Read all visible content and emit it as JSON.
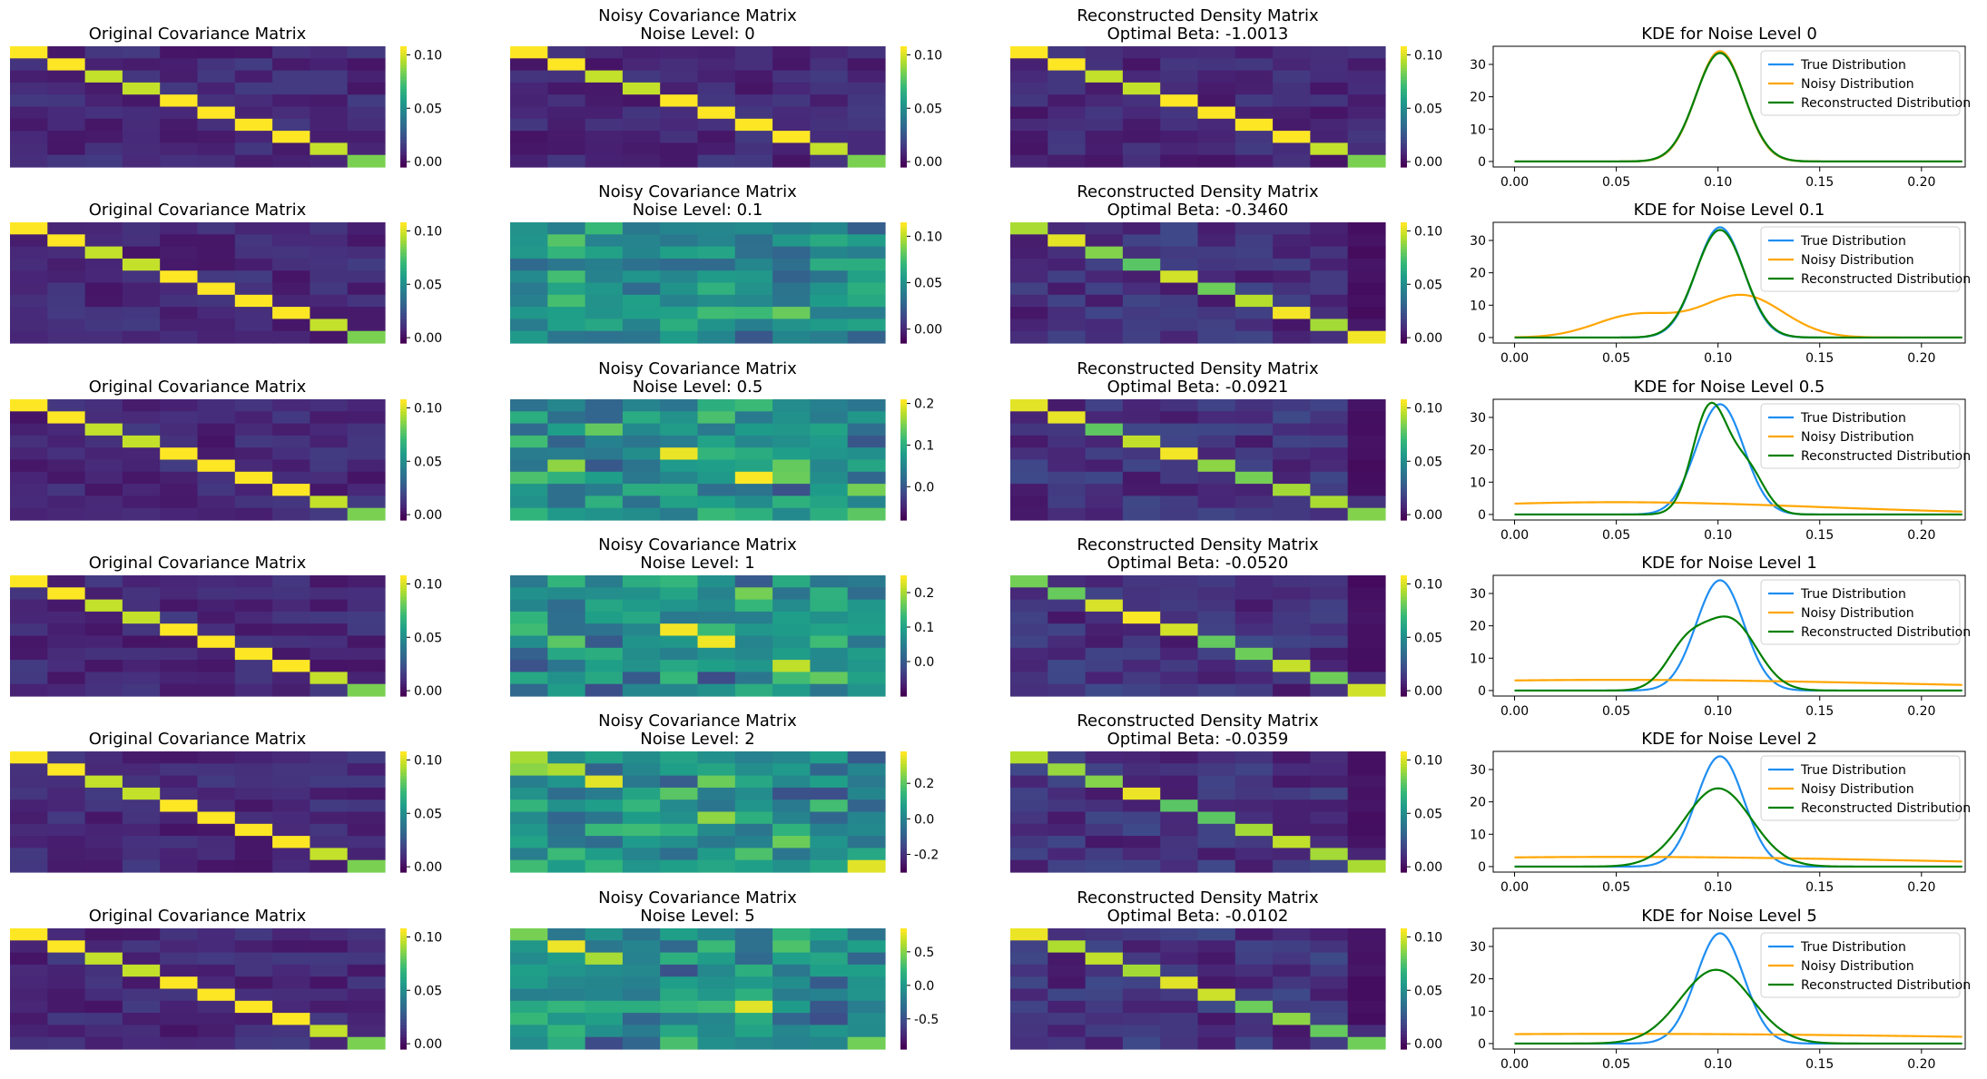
{
  "figure": {
    "background": "#ffffff",
    "colormap": "viridis"
  },
  "chart_data": {
    "type": "heatmap",
    "matrix_size": 10,
    "rows": [
      {
        "original": {
          "title": "Original Covariance Matrix",
          "colorbar_ticks": [
            "0.00",
            "0.05",
            "0.10"
          ],
          "range": [
            -0.005,
            0.108
          ]
        },
        "noisy": {
          "title_line1": "Noisy Covariance Matrix",
          "title_line2": "Noise Level: 0",
          "colorbar_ticks": [
            "0.00",
            "0.05",
            "0.10"
          ],
          "range": [
            -0.005,
            0.108
          ]
        },
        "reconstructed": {
          "title_line1": "Reconstructed Density Matrix",
          "title_line2": "Optimal Beta: -1.0013",
          "colorbar_ticks": [
            "0.00",
            "0.05",
            "0.10"
          ],
          "range": [
            -0.005,
            0.108
          ]
        },
        "kde": {
          "title": "KDE for Noise Level 0",
          "true": {
            "mean": 0.101,
            "sd": 0.0117
          },
          "noisy": {
            "mean": 0.101,
            "sd": 0.0117
          },
          "recon": {
            "mean": 0.101,
            "sd": 0.0119
          }
        }
      },
      {
        "original": {
          "title": "Original Covariance Matrix",
          "colorbar_ticks": [
            "0.00",
            "0.05",
            "0.10"
          ],
          "range": [
            -0.005,
            0.108
          ]
        },
        "noisy": {
          "title_line1": "Noisy Covariance Matrix",
          "title_line2": "Noise Level: 0.1",
          "colorbar_ticks": [
            "0.00",
            "0.05",
            "0.10"
          ],
          "range": [
            -0.015,
            0.115
          ]
        },
        "reconstructed": {
          "title_line1": "Reconstructed Density Matrix",
          "title_line2": "Optimal Beta: -0.3460",
          "colorbar_ticks": [
            "0.00",
            "0.05",
            "0.10"
          ],
          "range": [
            -0.005,
            0.108
          ]
        },
        "kde": {
          "title": "KDE for Noise Level 0.1",
          "true": {
            "mean": 0.101,
            "sd": 0.0117
          },
          "noisy": [
            {
              "mean": 0.06,
              "sd": 0.02,
              "w": 0.35
            },
            {
              "mean": 0.112,
              "sd": 0.02,
              "w": 0.65
            }
          ],
          "recon": {
            "mean": 0.101,
            "sd": 0.012
          }
        }
      },
      {
        "original": {
          "title": "Original Covariance Matrix",
          "colorbar_ticks": [
            "0.00",
            "0.05",
            "0.10"
          ],
          "range": [
            -0.005,
            0.108
          ]
        },
        "noisy": {
          "title_line1": "Noisy Covariance Matrix",
          "title_line2": "Noise Level: 0.5",
          "colorbar_ticks": [
            "0.0",
            "0.1",
            "0.2"
          ],
          "range": [
            -0.08,
            0.21
          ]
        },
        "reconstructed": {
          "title_line1": "Reconstructed Density Matrix",
          "title_line2": "Optimal Beta: -0.0921",
          "colorbar_ticks": [
            "0.00",
            "0.05",
            "0.10"
          ],
          "range": [
            -0.005,
            0.108
          ]
        },
        "kde": {
          "title": "KDE for Noise Level 0.5",
          "true": {
            "mean": 0.101,
            "sd": 0.0117
          },
          "noisy": {
            "mean": 0.05,
            "sd": 0.1,
            "peak": 3.8
          },
          "recon": [
            {
              "mean": 0.096,
              "sd": 0.0085,
              "w": 0.7
            },
            {
              "mean": 0.114,
              "sd": 0.0085,
              "w": 0.3
            }
          ]
        }
      },
      {
        "original": {
          "title": "Original Covariance Matrix",
          "colorbar_ticks": [
            "0.00",
            "0.05",
            "0.10"
          ],
          "range": [
            -0.005,
            0.108
          ]
        },
        "noisy": {
          "title_line1": "Noisy Covariance Matrix",
          "title_line2": "Noise Level: 1",
          "colorbar_ticks": [
            "0.0",
            "0.1",
            "0.2"
          ],
          "range": [
            -0.1,
            0.25
          ]
        },
        "reconstructed": {
          "title_line1": "Reconstructed Density Matrix",
          "title_line2": "Optimal Beta: -0.0520",
          "colorbar_ticks": [
            "0.00",
            "0.05",
            "0.10"
          ],
          "range": [
            -0.005,
            0.108
          ]
        },
        "kde": {
          "title": "KDE for Noise Level 1",
          "true": {
            "mean": 0.101,
            "sd": 0.0117
          },
          "noisy": {
            "mean": 0.05,
            "sd": 0.15,
            "peak": 3.3
          },
          "recon": [
            {
              "mean": 0.084,
              "sd": 0.01,
              "w": 0.3
            },
            {
              "mean": 0.106,
              "sd": 0.013,
              "w": 0.7
            }
          ]
        }
      },
      {
        "original": {
          "title": "Original Covariance Matrix",
          "colorbar_ticks": [
            "0.00",
            "0.05",
            "0.10"
          ],
          "range": [
            -0.005,
            0.108
          ]
        },
        "noisy": {
          "title_line1": "Noisy Covariance Matrix",
          "title_line2": "Noise Level: 2",
          "colorbar_ticks": [
            "-0.2",
            "0.0",
            "0.2"
          ],
          "range": [
            -0.3,
            0.38
          ]
        },
        "reconstructed": {
          "title_line1": "Reconstructed Density Matrix",
          "title_line2": "Optimal Beta: -0.0359",
          "colorbar_ticks": [
            "0.00",
            "0.05",
            "0.10"
          ],
          "range": [
            -0.005,
            0.108
          ]
        },
        "kde": {
          "title": "KDE for Noise Level 2",
          "true": {
            "mean": 0.101,
            "sd": 0.0117
          },
          "noisy": {
            "mean": 0.05,
            "sd": 0.15,
            "peak": 3.0
          },
          "recon": {
            "mean": 0.1,
            "sd": 0.0165
          }
        }
      },
      {
        "original": {
          "title": "Original Covariance Matrix",
          "colorbar_ticks": [
            "0.00",
            "0.05",
            "0.10"
          ],
          "range": [
            -0.005,
            0.108
          ]
        },
        "noisy": {
          "title_line1": "Noisy Covariance Matrix",
          "title_line2": "Noise Level: 5",
          "colorbar_ticks": [
            "-0.5",
            "0.0",
            "0.5"
          ],
          "range": [
            -0.95,
            0.85
          ]
        },
        "reconstructed": {
          "title_line1": "Reconstructed Density Matrix",
          "title_line2": "Optimal Beta: -0.0102",
          "colorbar_ticks": [
            "0.00",
            "0.05",
            "0.10"
          ],
          "range": [
            -0.005,
            0.108
          ]
        },
        "kde": {
          "title": "KDE for Noise Level 5",
          "true": {
            "mean": 0.101,
            "sd": 0.0117
          },
          "noisy": {
            "mean": 0.05,
            "sd": 0.2,
            "peak": 3.0
          },
          "recon": {
            "mean": 0.099,
            "sd": 0.0175
          }
        }
      }
    ],
    "kde_axes": {
      "xlim": [
        -0.0105,
        0.2215
      ],
      "ylim": [
        -1.7,
        35.6
      ],
      "x_ticks": [
        0.0,
        0.05,
        0.1,
        0.15,
        0.2
      ],
      "x_tick_labels": [
        "0.00",
        "0.05",
        "0.10",
        "0.15",
        "0.20"
      ],
      "y_ticks": [
        0,
        10,
        20,
        30
      ],
      "y_tick_labels": [
        "0",
        "10",
        "20",
        "30"
      ],
      "x_range": [
        0.0,
        0.22
      ]
    },
    "legend": [
      {
        "label": "True Distribution",
        "color": "#1f8ef1"
      },
      {
        "label": "Noisy Distribution",
        "color": "#ffa500"
      },
      {
        "label": "Reconstructed Distribution",
        "color": "#008000"
      }
    ]
  }
}
